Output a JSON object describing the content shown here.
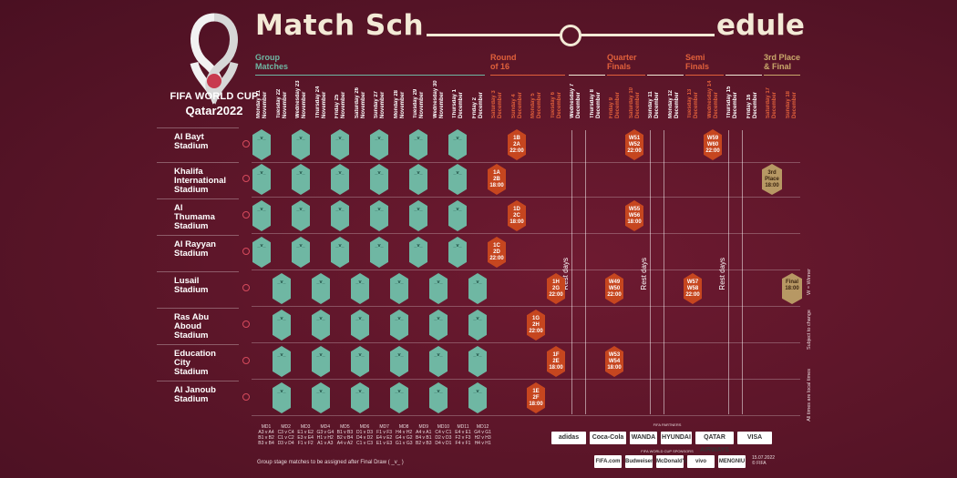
{
  "brand": {
    "title": "FIFA WORLD CUP",
    "subtitle": "Qatar2022"
  },
  "header": {
    "title_left": "Match Sch",
    "title_right": "edule"
  },
  "sections": [
    {
      "name": "Group\nMatches",
      "color": "#6fb7a3"
    },
    {
      "name": "Round\nof 16",
      "color": "#e0603b"
    },
    {
      "name": "Quarter\nFinals",
      "color": "#e0603b"
    },
    {
      "name": "Semi\nFinals",
      "color": "#e0603b"
    },
    {
      "name": "3rd Place\n& Final",
      "color": "#c9a86b"
    }
  ],
  "days": [
    "Monday 21 November",
    "Tuesday 22 November",
    "Wednesday 23 November",
    "Thursday 24 November",
    "Friday 25 November",
    "Saturday 26 November",
    "Sunday 27 November",
    "Monday 28 November",
    "Tuesday 29 November",
    "Wednesday 30 November",
    "Thursday 1 December",
    "Friday 2 December",
    "Saturday 3 December",
    "Sunday 4 December",
    "Monday 5 December",
    "Tuesday 6 December",
    "Wednesday 7 December",
    "Thursday 8 December",
    "Friday 9 December",
    "Saturday 10 December",
    "Sunday 11 December",
    "Monday 12 December",
    "Tuesday 13 December",
    "Wednesday 14 December",
    "Thursday 15 December",
    "Friday 16 December",
    "Saturday 17 December",
    "Sunday 18 December"
  ],
  "venues": [
    "Al Bayt\nStadium",
    "Khalifa\nInternational\nStadium",
    "Al\nThumama\nStadium",
    "Al Rayyan\nStadium",
    "Lusail\nStadium",
    "Ras Abu\nAboud\nStadium",
    "Education\nCity\nStadium",
    "Al Janoub\nStadium"
  ],
  "knockout": {
    "r16": [
      {
        "code": "1B\n2A",
        "time": "22:00"
      },
      {
        "code": "1A\n2B",
        "time": "18:00"
      },
      {
        "code": "1D\n2C",
        "time": "18:00"
      },
      {
        "code": "1C\n2D",
        "time": "22:00"
      },
      {
        "code": "1H\n2G",
        "time": "22:00"
      },
      {
        "code": "1G\n2H",
        "time": "22:00"
      },
      {
        "code": "1F\n2E",
        "time": "18:00"
      },
      {
        "code": "1E\n2F",
        "time": "18:00"
      }
    ],
    "qf": [
      {
        "code": "W51\nW52",
        "time": "22:00"
      },
      {
        "code": "W55\nW56",
        "time": "18:00"
      },
      {
        "code": "W49\nW50",
        "time": "22:00"
      },
      {
        "code": "W53\nW54",
        "time": "18:00"
      }
    ],
    "sf": [
      {
        "code": "W59\nW60",
        "time": "22:00"
      },
      {
        "code": "W57\nW58",
        "time": "22:00"
      }
    ],
    "third": {
      "code": "3rd\nPlace",
      "time": "18:00"
    },
    "final": {
      "code": "Final",
      "time": "18:00"
    }
  },
  "rest_label": "Rest days",
  "notes": {
    "winner": "W = Winner",
    "subject": "Subject to change",
    "local": "All times are local times"
  },
  "matchdays": [
    {
      "label": "MD1",
      "groups": "A3 v A4\nB1 v B2\nB3 v B4"
    },
    {
      "label": "MD2",
      "groups": "C3 v C4\nC1 v C2\nD3 v D4"
    },
    {
      "label": "MD3",
      "groups": "E1 v E2\nE3 v E4\nF1 v F2"
    },
    {
      "label": "MD4",
      "groups": "G3 v G4\nH1 v H2\nA1 v A3"
    },
    {
      "label": "MD5",
      "groups": "B1 v B3\nB2 v B4\nA4 v A2"
    },
    {
      "label": "MD6",
      "groups": "D1 v D3\nD4 v D2\nC1 v C3"
    },
    {
      "label": "MD7",
      "groups": "F1 v F3\nE4 v E2\nE1 v E3"
    },
    {
      "label": "MD8",
      "groups": "H4 v H2\nG4 v G2\nG1 v G3"
    },
    {
      "label": "MD9",
      "groups": "A4 v A1\nB4 v B1\nB2 v B3"
    },
    {
      "label": "MD10",
      "groups": "C4 v C1\nD2 v D3\nD4 v D1"
    },
    {
      "label": "MD11",
      "groups": "E4 v E1\nF2 v F3\nF4 v F1"
    },
    {
      "label": "MD12",
      "groups": "G4 v G1\nH2 v H3\nH4 v H1"
    }
  ],
  "footer": "Group stage matches to be assigned after Final Draw ( _v_ )",
  "partners_label": "FIFA PARTNERS",
  "sponsors_label": "FIFA WORLD CUP SPONSORS",
  "partners": [
    "adidas",
    "Coca-Cola",
    "WANDA",
    "HYUNDAI",
    "QATAR AIRWAYS",
    "VISA"
  ],
  "sponsors": [
    "FIFA.com",
    "Budweiser",
    "McDonald's",
    "vivo",
    "MENGNIU"
  ],
  "date": "15.07.2022\n© FIFA"
}
